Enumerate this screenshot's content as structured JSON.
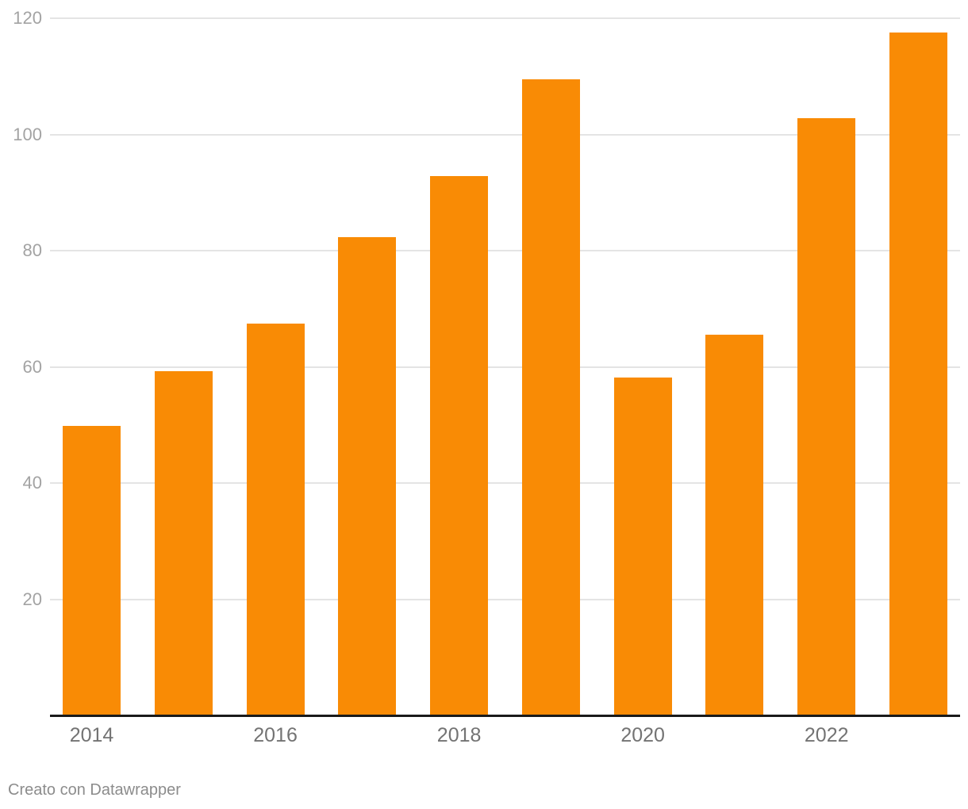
{
  "chart_data": {
    "type": "bar",
    "title": "",
    "xlabel": "",
    "ylabel": "",
    "categories": [
      "2014",
      "2015",
      "2016",
      "2017",
      "2018",
      "2019",
      "2020",
      "2021",
      "2022",
      "2023"
    ],
    "values": [
      49.8,
      59.2,
      67.5,
      82.3,
      92.8,
      109.5,
      58.1,
      65.5,
      102.8,
      117.6
    ],
    "ylim": [
      0,
      120
    ],
    "y_ticks": [
      20,
      40,
      60,
      80,
      100,
      120
    ],
    "x_tick_labels": [
      "2014",
      "2016",
      "2018",
      "2020",
      "2022"
    ],
    "grid": true,
    "legend": "none",
    "bar_color": "#f98b05"
  },
  "colors": {
    "background": "#ffffff",
    "bar": "#f98b05",
    "gridline": "#e4e4e4",
    "axis_line": "#1a1a1a",
    "y_tick_text": "#a3a3a3",
    "x_tick_text": "#737373",
    "footer_text": "#8c8c8c"
  },
  "footer": {
    "text": "Creato con Datawrapper"
  }
}
